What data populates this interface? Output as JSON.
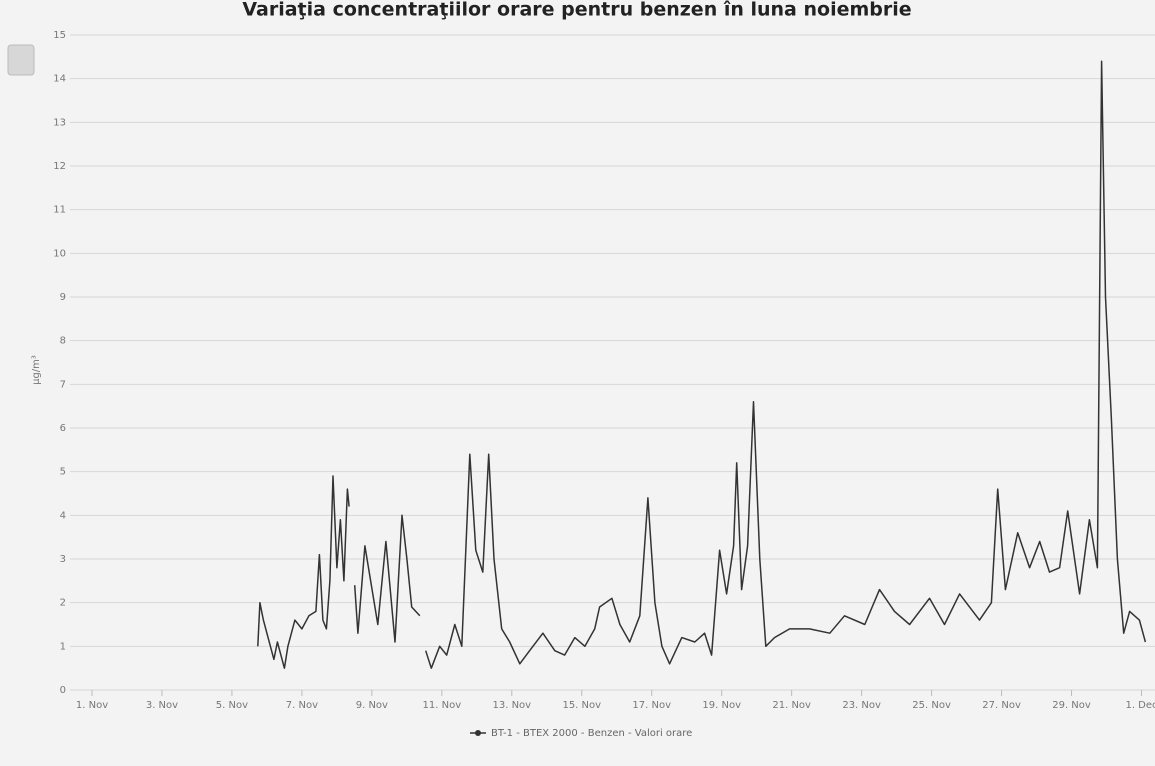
{
  "chart_data": {
    "type": "line",
    "title": "Variaţia concentraţiilor orare pentru benzen în luna noiembrie",
    "y_label": "µg/m³",
    "x": [
      5.74,
      5.8,
      5.9,
      6.1,
      6.2,
      6.3,
      6.4,
      6.5,
      6.6,
      6.8,
      7.0,
      7.2,
      7.4,
      7.5,
      7.6,
      7.7,
      7.8,
      7.89,
      8.0,
      8.1,
      8.2,
      8.3,
      8.35,
      8.4,
      8.51,
      8.6,
      8.8,
      9.17,
      9.4,
      9.66,
      9.86,
      10.0,
      10.14,
      10.37,
      10.45,
      10.54,
      10.7,
      10.94,
      11.14,
      11.37,
      11.57,
      11.8,
      11.97,
      12.17,
      12.34,
      12.49,
      12.71,
      12.94,
      13.23,
      13.51,
      13.89,
      14.23,
      14.51,
      14.8,
      15.09,
      15.37,
      15.51,
      15.86,
      16.09,
      16.37,
      16.66,
      16.89,
      17.09,
      17.29,
      17.51,
      17.86,
      18.23,
      18.51,
      18.71,
      18.94,
      19.14,
      19.34,
      19.43,
      19.57,
      19.74,
      19.91,
      20.09,
      20.26,
      20.51,
      20.94,
      21.51,
      22.09,
      22.51,
      23.09,
      23.51,
      23.94,
      24.37,
      24.94,
      25.37,
      25.8,
      26.37,
      26.71,
      26.89,
      27.11,
      27.46,
      27.8,
      28.09,
      28.37,
      28.66,
      28.89,
      29.23,
      29.51,
      29.74,
      29.86,
      29.97,
      30.14,
      30.31,
      30.49,
      30.66,
      30.94,
      31.11
    ],
    "series": [
      {
        "name": "BT-1 - BTEX 2000 - Benzen - Valori orare",
        "color": "#333333",
        "values": [
          1.0,
          2.0,
          1.6,
          1.0,
          0.7,
          1.1,
          0.8,
          0.5,
          1.0,
          1.6,
          1.4,
          1.7,
          1.8,
          3.1,
          1.6,
          1.4,
          2.5,
          4.9,
          2.8,
          3.9,
          2.5,
          4.6,
          4.2,
          null,
          2.4,
          1.3,
          3.3,
          1.5,
          3.4,
          1.1,
          4.0,
          3.0,
          1.9,
          1.7,
          null,
          0.9,
          0.5,
          1.0,
          0.8,
          1.5,
          1.0,
          5.4,
          3.2,
          2.7,
          5.4,
          3.0,
          1.4,
          1.1,
          0.6,
          0.9,
          1.3,
          0.9,
          0.8,
          1.2,
          1.0,
          1.4,
          1.9,
          2.1,
          1.5,
          1.1,
          1.7,
          4.4,
          2.0,
          1.0,
          0.6,
          1.2,
          1.1,
          1.3,
          0.8,
          3.2,
          2.2,
          3.3,
          5.2,
          2.3,
          3.3,
          6.6,
          3.0,
          1.0,
          1.2,
          1.4,
          1.4,
          1.3,
          1.7,
          1.5,
          2.3,
          1.8,
          1.5,
          2.1,
          1.5,
          2.2,
          1.6,
          2.0,
          4.6,
          2.3,
          3.6,
          2.8,
          3.4,
          2.7,
          2.8,
          4.1,
          2.2,
          3.9,
          2.8,
          14.4,
          9.0,
          6.2,
          3.0,
          1.3,
          1.8,
          1.6,
          1.1
        ]
      }
    ],
    "xlim": [
      1,
      31.3
    ],
    "xticks": [
      {
        "value": 1,
        "label": "1. Nov"
      },
      {
        "value": 3,
        "label": "3. Nov"
      },
      {
        "value": 5,
        "label": "5. Nov"
      },
      {
        "value": 7,
        "label": "7. Nov"
      },
      {
        "value": 9,
        "label": "9. Nov"
      },
      {
        "value": 11,
        "label": "11. Nov"
      },
      {
        "value": 13,
        "label": "13. Nov"
      },
      {
        "value": 15,
        "label": "15. Nov"
      },
      {
        "value": 17,
        "label": "17. Nov"
      },
      {
        "value": 19,
        "label": "19. Nov"
      },
      {
        "value": 21,
        "label": "21. Nov"
      },
      {
        "value": 23,
        "label": "23. Nov"
      },
      {
        "value": 25,
        "label": "25. Nov"
      },
      {
        "value": 27,
        "label": "27. Nov"
      },
      {
        "value": 29,
        "label": "29. Nov"
      },
      {
        "value": 31,
        "label": "1. Dec"
      }
    ],
    "ylim": [
      0,
      15
    ],
    "yticks": [
      0,
      1,
      2,
      3,
      4,
      5,
      6,
      7,
      8,
      9,
      10,
      11,
      12,
      13,
      14,
      15
    ],
    "grid": true
  }
}
